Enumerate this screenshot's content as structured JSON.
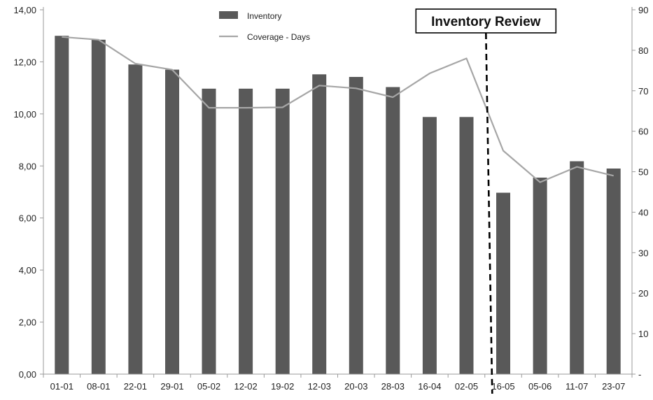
{
  "chart_data": {
    "type": "bar",
    "categories": [
      "01-01",
      "08-01",
      "22-01",
      "29-01",
      "05-02",
      "12-02",
      "19-02",
      "12-03",
      "20-03",
      "28-03",
      "16-04",
      "02-05",
      "16-05",
      "05-06",
      "11-07",
      "23-07"
    ],
    "series": [
      {
        "name": "Inventory",
        "type": "bar",
        "axis": "left",
        "values": [
          13.0,
          12.85,
          11.9,
          11.7,
          10.97,
          10.97,
          10.97,
          11.52,
          11.42,
          11.03,
          9.88,
          9.88,
          6.97,
          7.55,
          8.18,
          7.9
        ]
      },
      {
        "name": "Coverage - Days",
        "type": "line",
        "axis": "right",
        "values": [
          83.3,
          82.6,
          76.7,
          75.2,
          65.8,
          65.8,
          65.9,
          71.3,
          70.6,
          68.4,
          74.3,
          78.0,
          55.2,
          47.4,
          51.2,
          49.0
        ]
      }
    ],
    "y_left": {
      "min": 0,
      "max": 14,
      "ticks": [
        0,
        2,
        4,
        6,
        8,
        10,
        12,
        14
      ],
      "tick_labels": [
        "0,00",
        "2,00",
        "4,00",
        "6,00",
        "8,00",
        "10,00",
        "12,00",
        "14,00"
      ]
    },
    "y_right": {
      "min": 0,
      "max": 90,
      "ticks": [
        0,
        10,
        20,
        30,
        40,
        50,
        60,
        70,
        80,
        90
      ],
      "tick_labels": [
        "-",
        "10",
        "20",
        "30",
        "40",
        "50",
        "60",
        "70",
        "80",
        "90"
      ]
    },
    "annotations": [
      {
        "label": "Inventory Review",
        "x_between": [
          "02-05",
          "16-05"
        ],
        "style": "dashed-vertical-line"
      }
    ],
    "legend": {
      "placement": "top-center",
      "entries": [
        "Inventory",
        "Coverage - Days"
      ]
    },
    "grid": false,
    "colors": {
      "bar": "#595959",
      "line": "#a6a6a6",
      "axis": "#9a9a9a",
      "annotation": "#000000"
    }
  }
}
